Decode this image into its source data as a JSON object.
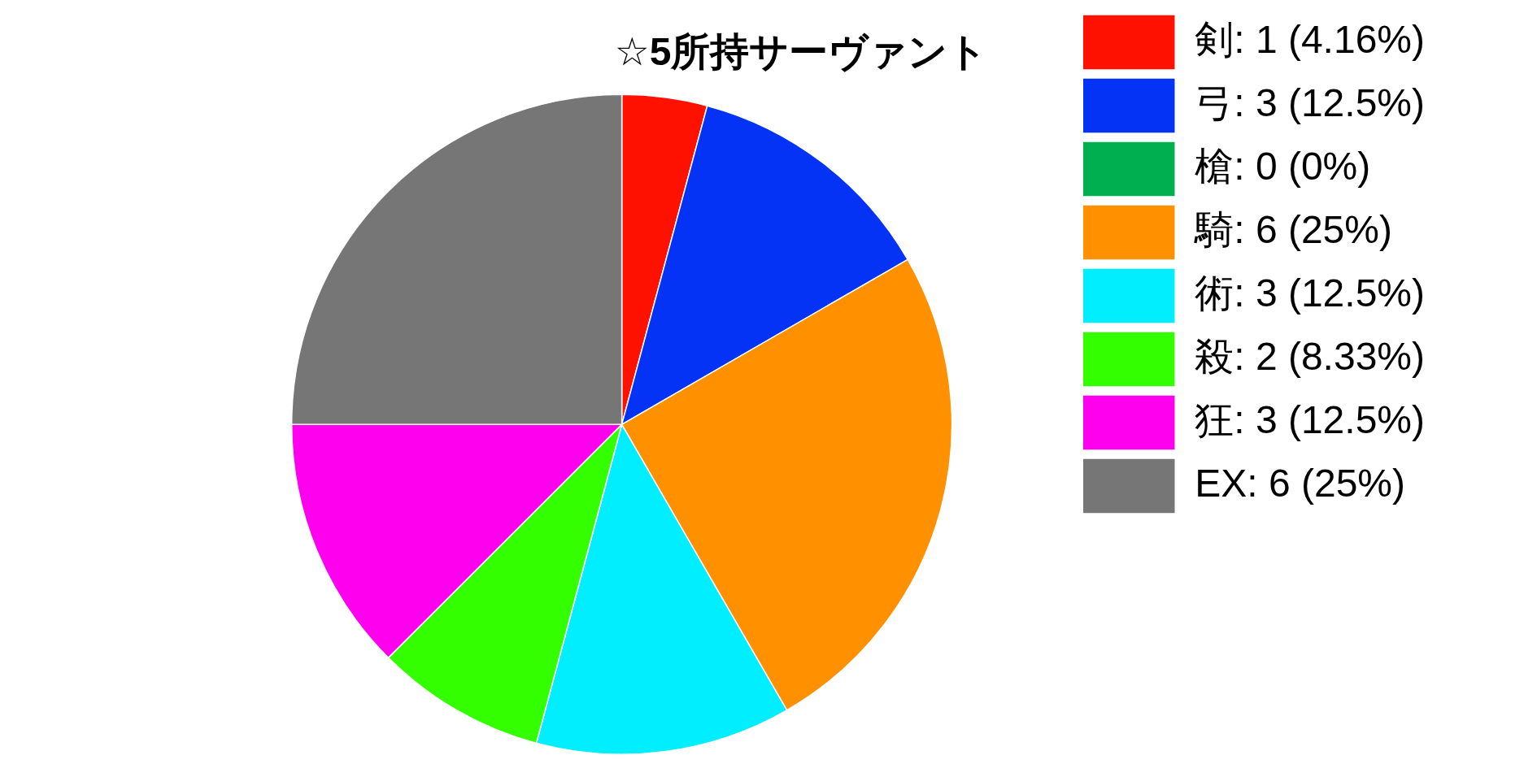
{
  "chart_data": {
    "type": "pie",
    "title": "☆5所持サーヴァント",
    "categories": [
      "剣: 1 (4.16%)",
      "弓: 3 (12.5%)",
      "槍: 0 (0%)",
      "騎: 6 (25%)",
      "術: 3 (12.5%)",
      "殺: 2 (8.33%)",
      "狂: 3 (12.5%)",
      "EX: 6 (25%)"
    ],
    "values": [
      1,
      3,
      0,
      6,
      3,
      2,
      3,
      6
    ],
    "colors": [
      "#ff1100",
      "#0433f5",
      "#00b050",
      "#ff9000",
      "#00eeff",
      "#33ff00",
      "#ff00ee",
      "#767676"
    ],
    "legend": "right"
  }
}
